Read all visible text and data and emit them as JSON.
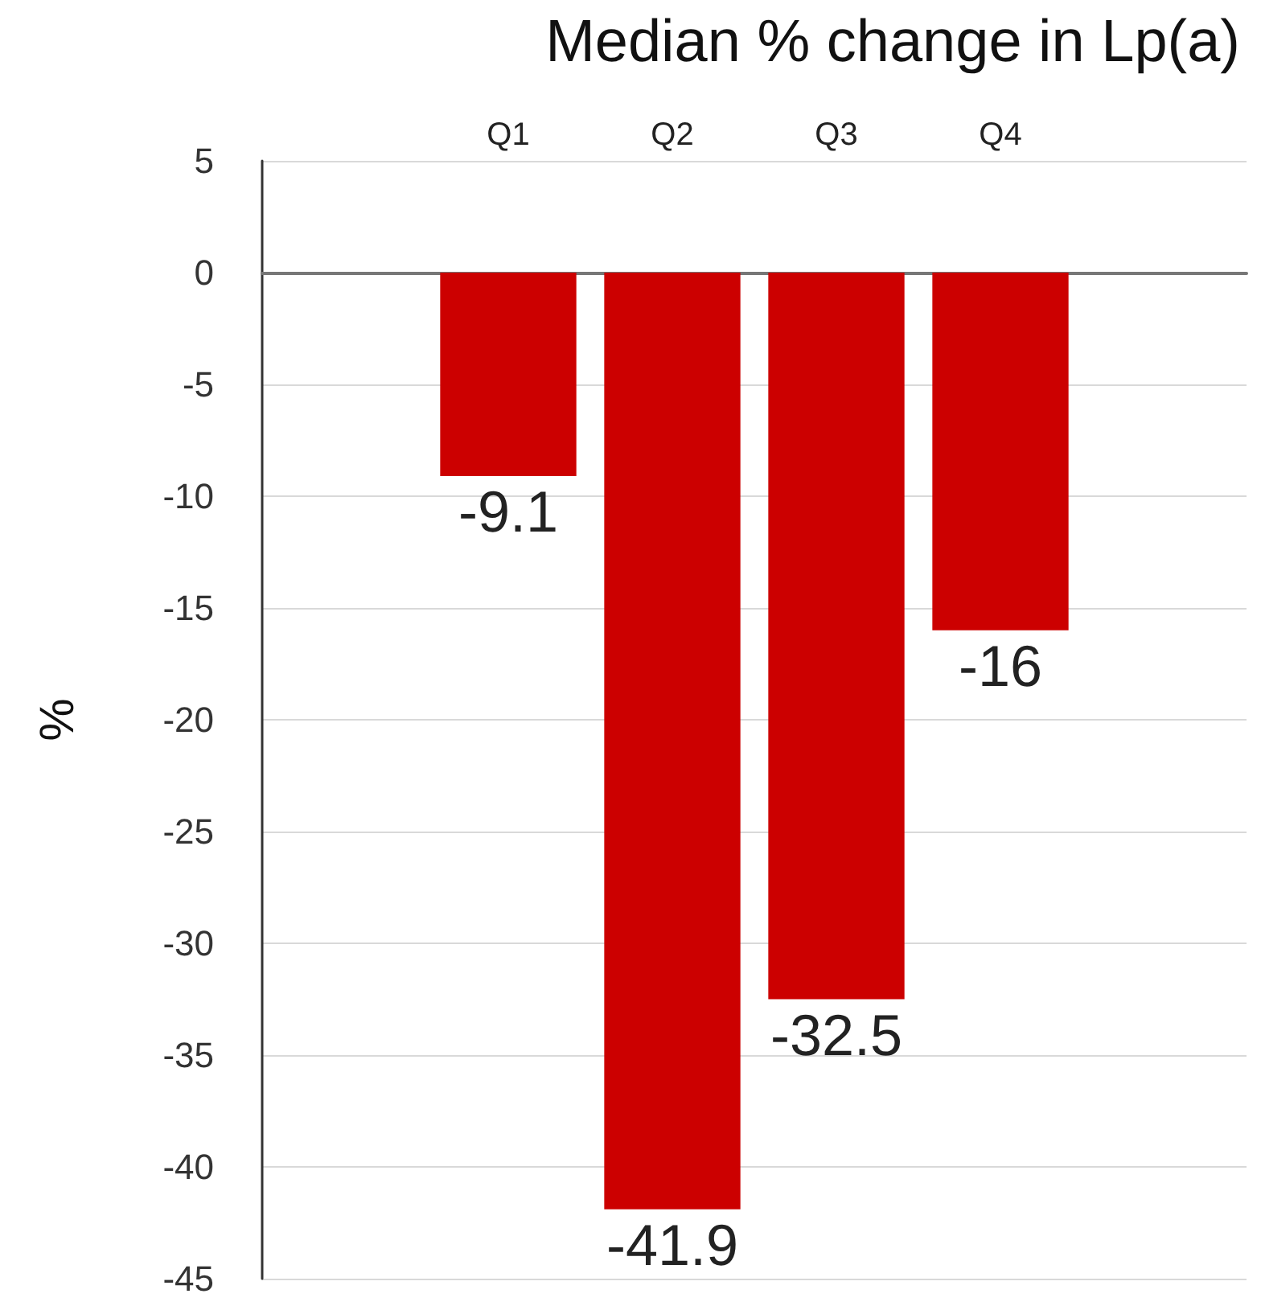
{
  "chart_data": {
    "type": "bar",
    "title": "Median % change in Lp(a)",
    "ylabel": "%",
    "categories": [
      null,
      "Q1",
      "Q2",
      "Q3",
      "Q4",
      null
    ],
    "values": [
      null,
      -9.1,
      -41.9,
      -32.5,
      -16,
      null
    ],
    "color": "#cc0000",
    "ylim": [
      -45,
      5
    ],
    "yticks": [
      5,
      0,
      -5,
      -10,
      -15,
      -20,
      -25,
      -30,
      -35,
      -40,
      -45
    ],
    "grid": "y",
    "data_labels": true
  }
}
